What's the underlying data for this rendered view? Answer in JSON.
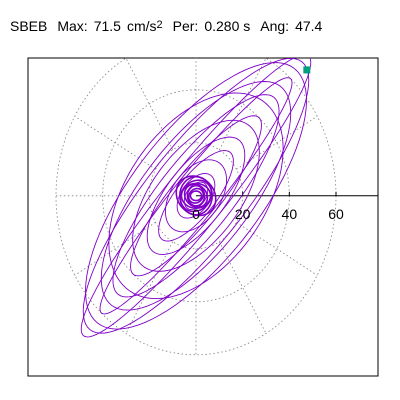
{
  "header": {
    "station": "SBEB",
    "max_label": "Max:",
    "max_value": "71.5",
    "max_unit": "cm/s",
    "max_exp": "2",
    "per_label": "Per:",
    "per_value": "0.280 s",
    "ang_label": "Ang:",
    "ang_value": "47.4"
  },
  "colors": {
    "trace": "#8000c8",
    "marker": "#009f80",
    "grid": "#808080",
    "axes": "#000000"
  },
  "chart_data": {
    "type": "scatter",
    "title": "",
    "xlabel": "",
    "ylabel": "",
    "grid": "polar",
    "polar_rings": [
      20,
      40,
      60
    ],
    "tick_labels": [
      "0",
      "20",
      "40",
      "60"
    ],
    "xlim": [
      -72,
      78
    ],
    "ylim": [
      -68,
      52
    ],
    "angle_deg": 47.4,
    "max_amplitude": 71.5,
    "period_s": 0.28,
    "end_marker": [
      47.5,
      47.5
    ],
    "series": [
      {
        "ellipses": [
          {
            "a": 71.5,
            "b": 12,
            "phase": 0.2
          },
          {
            "a": 68,
            "b": 20,
            "phase": 0.6
          },
          {
            "a": 64,
            "b": 26,
            "phase": 1.1
          },
          {
            "a": 60,
            "b": 9,
            "phase": 1.7
          },
          {
            "a": 55,
            "b": 22,
            "phase": 2.3
          },
          {
            "a": 50,
            "b": 15,
            "phase": 2.9
          },
          {
            "a": 46,
            "b": 28,
            "phase": 0.4
          },
          {
            "a": 40,
            "b": 10,
            "phase": 1.4
          },
          {
            "a": 35,
            "b": 18,
            "phase": 2.0
          },
          {
            "a": 28,
            "b": 12,
            "phase": 0.9
          },
          {
            "a": 22,
            "b": 8,
            "phase": 2.6
          },
          {
            "a": 16,
            "b": 10,
            "phase": 1.2
          },
          {
            "a": 10,
            "b": 6,
            "phase": 0.3
          },
          {
            "a": 6,
            "b": 4,
            "phase": 1.9
          }
        ]
      }
    ]
  }
}
